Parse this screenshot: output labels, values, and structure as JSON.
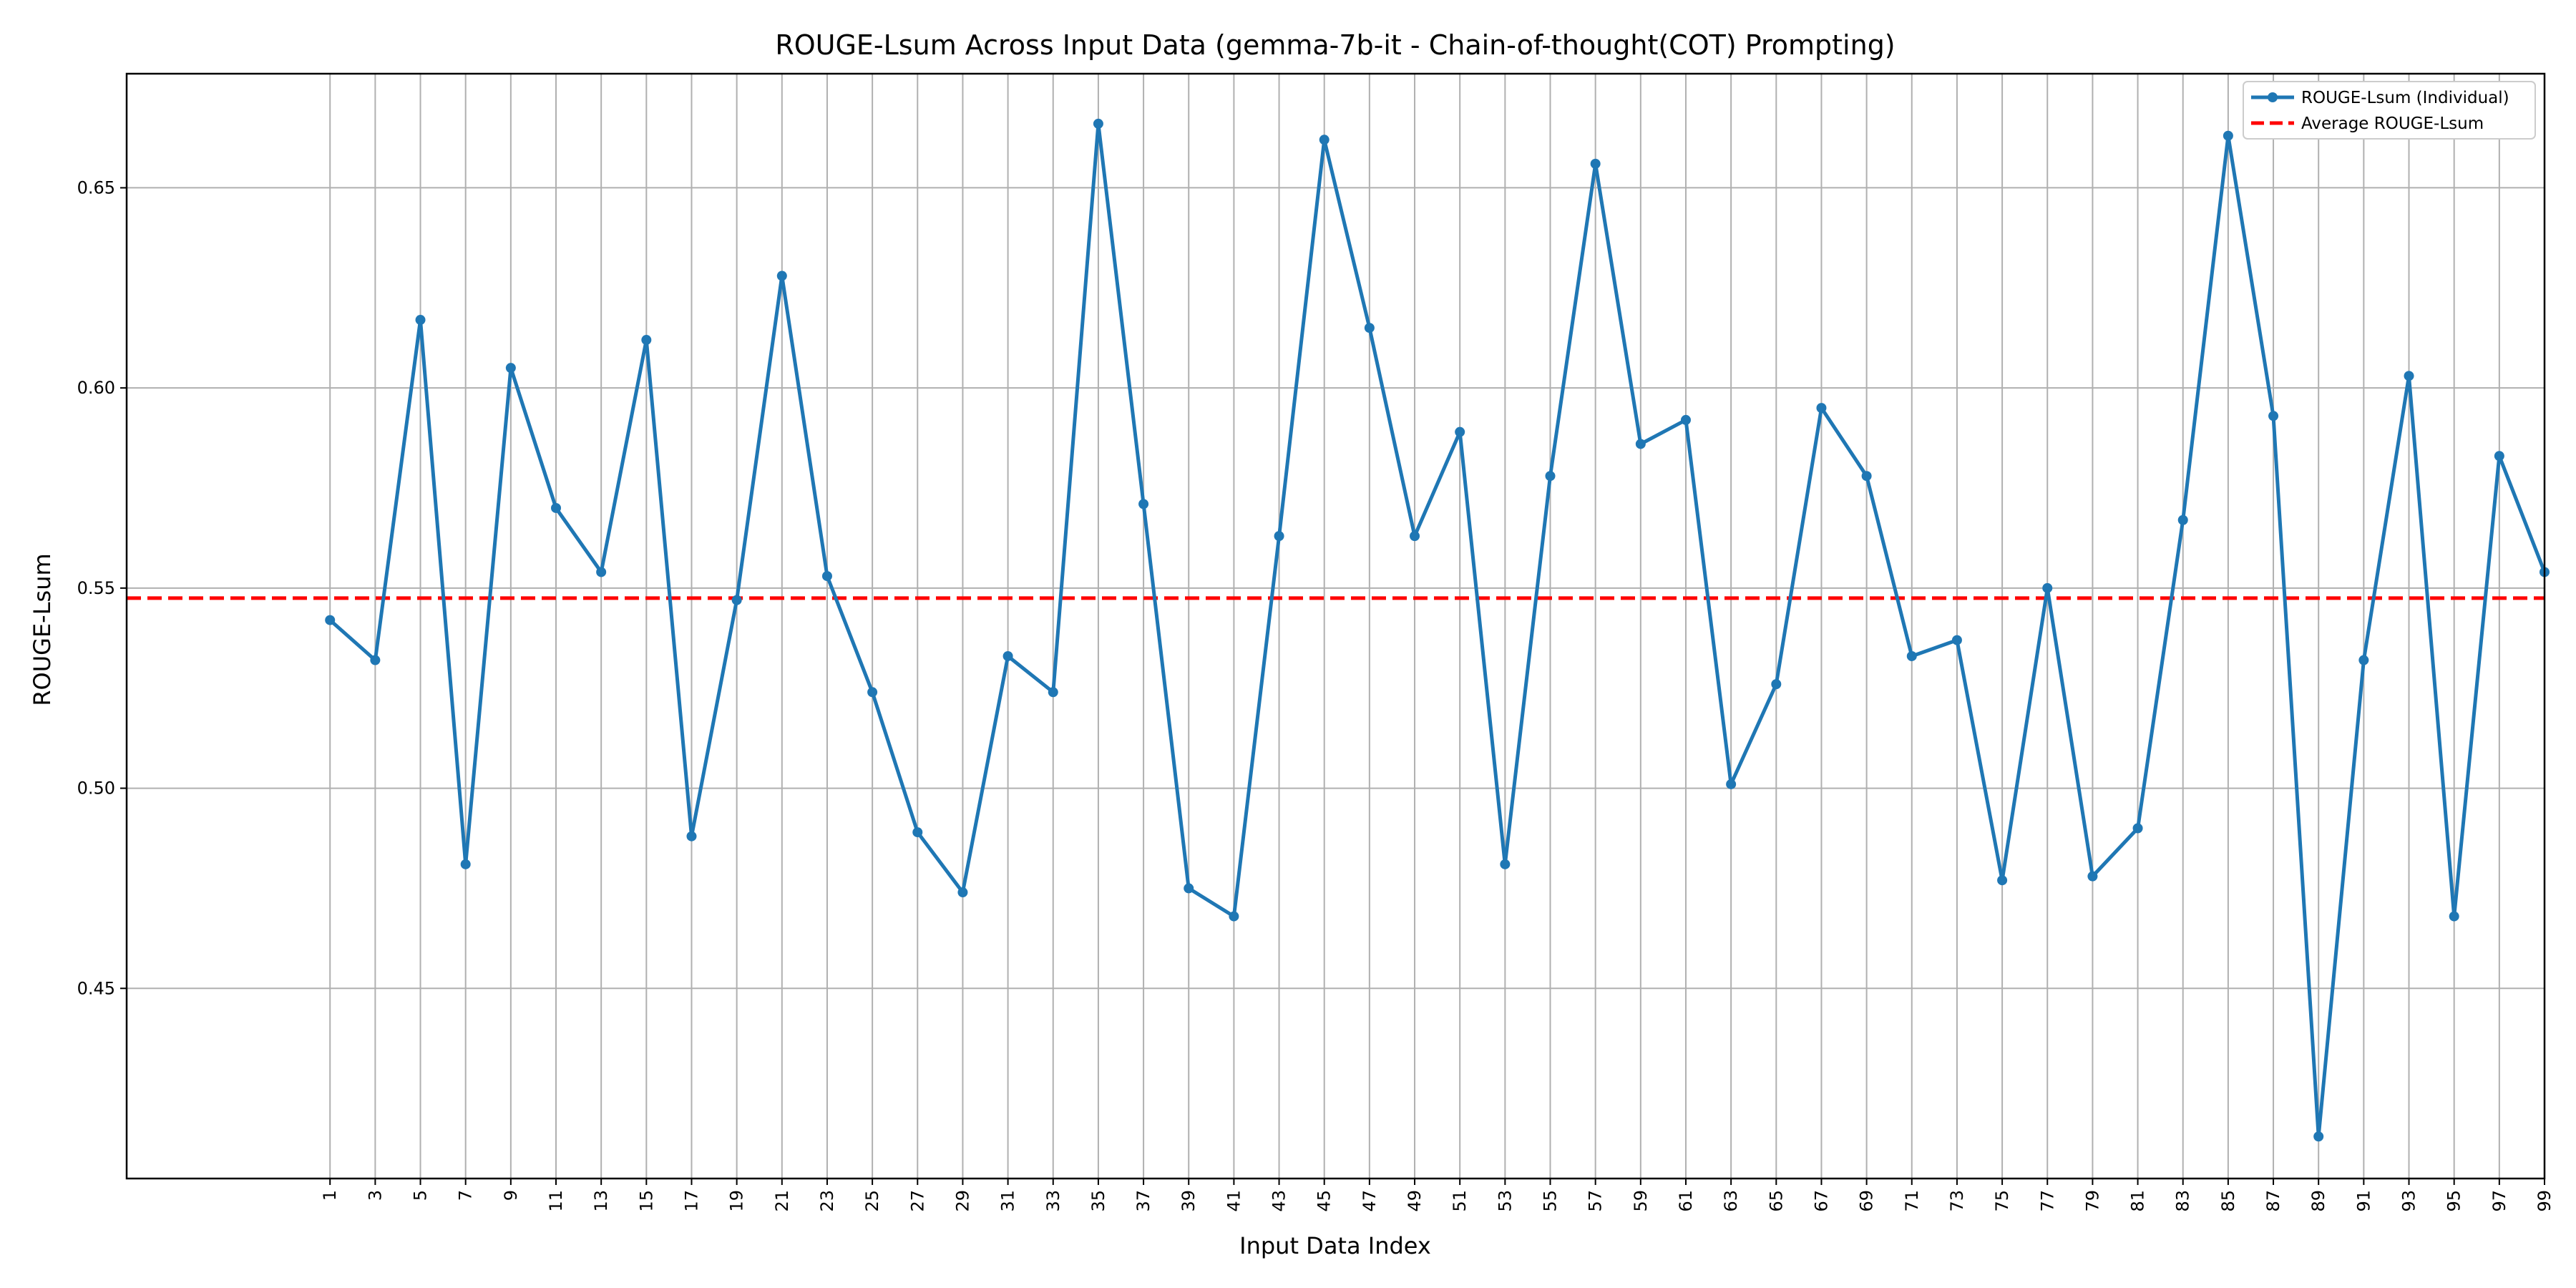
{
  "chart_data": {
    "type": "line",
    "title": "ROUGE-Lsum Across Input Data (gemma-7b-it - Chain-of-thought(COT) Prompting)",
    "xlabel": "Input Data Index",
    "ylabel": "ROUGE-Lsum",
    "x": [
      1,
      3,
      5,
      7,
      9,
      11,
      13,
      15,
      17,
      19,
      21,
      23,
      25,
      27,
      29,
      31,
      33,
      35,
      37,
      39,
      41,
      43,
      45,
      47,
      49,
      51,
      53,
      55,
      57,
      59,
      61,
      63,
      65,
      67,
      69,
      71,
      73,
      75,
      77,
      79,
      81,
      83,
      85,
      87,
      89,
      91,
      93,
      95,
      97,
      99
    ],
    "ylim": [
      0.4025,
      0.6785
    ],
    "xlim": [
      -8,
      99
    ],
    "yticks": [
      0.45,
      0.5,
      0.55,
      0.6,
      0.65
    ],
    "ytick_labels": [
      "0.45",
      "0.50",
      "0.55",
      "0.60",
      "0.65"
    ],
    "grid": true,
    "legend_position": "top-right",
    "series": [
      {
        "name": "ROUGE-Lsum (Individual)",
        "color": "#1f77b4",
        "style": "solid-with-markers",
        "values": [
          0.542,
          0.532,
          0.617,
          0.481,
          0.605,
          0.57,
          0.554,
          0.612,
          0.488,
          0.547,
          0.628,
          0.553,
          0.524,
          0.489,
          0.474,
          0.533,
          0.524,
          0.666,
          0.571,
          0.475,
          0.468,
          0.563,
          0.662,
          0.615,
          0.563,
          0.589,
          0.481,
          0.578,
          0.656,
          0.586,
          0.592,
          0.501,
          0.526,
          0.595,
          0.578,
          0.533,
          0.537,
          0.477,
          0.55,
          0.478,
          0.49,
          0.567,
          0.663,
          0.593,
          0.413,
          0.532,
          0.603,
          0.468,
          0.583,
          0.554
        ]
      },
      {
        "name": "Average ROUGE-Lsum",
        "color": "#ff0000",
        "style": "dashed",
        "value": 0.5475
      }
    ]
  }
}
